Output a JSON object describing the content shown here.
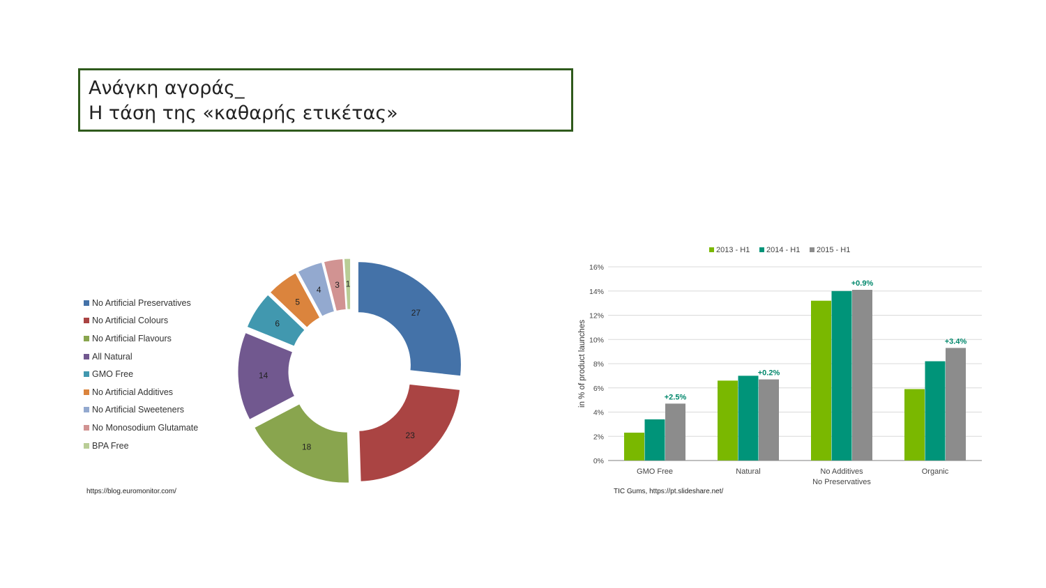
{
  "slide": {
    "title_line1": "Ανάγκη αγοράς_",
    "title_line2": "Η τάση της «καθαρής ετικέτας»",
    "source_left": "https://blog.euromonitor.com/",
    "source_right": "TIC Gums, https://pt.slideshare.net/"
  },
  "chart_data": [
    {
      "type": "pie",
      "subtype": "exploded-donut",
      "title": "",
      "legend_position": "left",
      "categories": [
        "No Artificial Preservatives",
        "No Artificial Colours",
        "No Artificial Flavours",
        "All Natural",
        "GMO Free",
        "No Artificial Additives",
        "No Artificial Sweeteners",
        "No Monosodium Glutamate",
        "BPA Free"
      ],
      "values": [
        27,
        23,
        18,
        14,
        6,
        5,
        4,
        3,
        1
      ],
      "colors": [
        "#4472a8",
        "#aa4443",
        "#89a54e",
        "#71588f",
        "#4198af",
        "#db843d",
        "#93a9cf",
        "#d19392",
        "#b9cd96"
      ]
    },
    {
      "type": "bar",
      "title": "",
      "ylabel": "in % of product launches",
      "xlabel": "",
      "categories": [
        [
          "GMO Free"
        ],
        [
          "Natural"
        ],
        [
          "No Additives",
          "No Preservatives"
        ],
        [
          "Organic"
        ]
      ],
      "series": [
        {
          "name": "2013 - H1",
          "color": "#7ab800",
          "values": [
            2.3,
            6.6,
            13.2,
            5.9
          ]
        },
        {
          "name": "2014 - H1",
          "color": "#009479",
          "values": [
            3.4,
            7.0,
            14.0,
            8.2
          ]
        },
        {
          "name": "2015 - H1",
          "color": "#8c8c8c",
          "values": [
            4.7,
            6.7,
            14.1,
            9.3
          ]
        }
      ],
      "annotations": [
        "+2.5%",
        "+0.2%",
        "+0.9%",
        "+3.4%"
      ],
      "annotation_color": "#00876b",
      "ylim": [
        0,
        16
      ],
      "yticks": [
        "0%",
        "2%",
        "4%",
        "6%",
        "8%",
        "10%",
        "12%",
        "14%",
        "16%"
      ],
      "ytick_values": [
        0,
        2,
        4,
        6,
        8,
        10,
        12,
        14,
        16
      ],
      "grid": true,
      "legend_position": "top"
    }
  ]
}
